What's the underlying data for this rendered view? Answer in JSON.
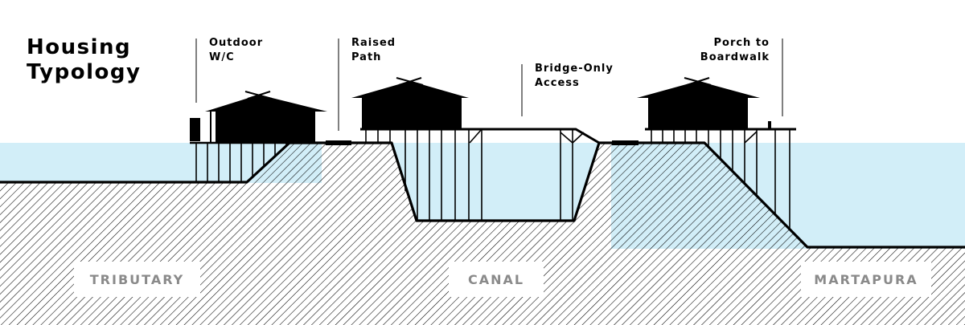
{
  "title": {
    "line1": "Housing",
    "line2": "Typology"
  },
  "annotations": [
    {
      "id": "outdoor-wc",
      "line1": "Outdoor",
      "line2": "W/C"
    },
    {
      "id": "raised-path",
      "line1": "Raised",
      "line2": "Path"
    },
    {
      "id": "bridge-only",
      "line1": "Bridge-Only",
      "line2": "Access"
    },
    {
      "id": "porch",
      "line1": "Porch to",
      "line2": "Boardwalk"
    }
  ],
  "regions": {
    "tributary": "TRIBUTARY",
    "canal": "CANAL",
    "martapura": "MARTAPURA"
  },
  "colors": {
    "water": "#d2eef8",
    "ground_hatch": "#000000",
    "label_gray": "#8a8a8a",
    "ink": "#000000"
  }
}
